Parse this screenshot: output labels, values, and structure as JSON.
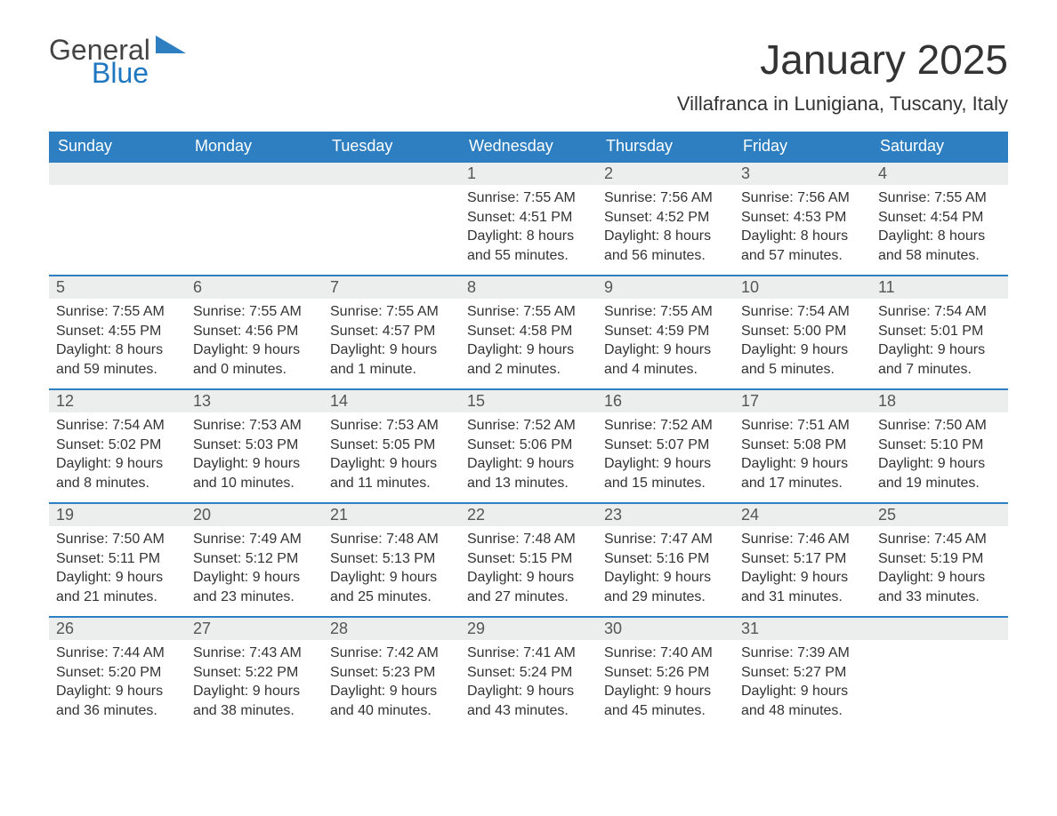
{
  "logo": {
    "word1": "General",
    "word2": "Blue",
    "triangle_color": "#2d7fc1"
  },
  "title": "January 2025",
  "location": "Villafranca in Lunigiana, Tuscany, Italy",
  "colors": {
    "header_bg": "#2d7fc1",
    "header_text": "#ffffff",
    "daybar_bg": "#eceded",
    "week_border": "#2d7fc1",
    "body_text": "#333333",
    "logo_blue": "#1f77c1",
    "logo_gray": "#444444",
    "background": "#ffffff"
  },
  "columns": [
    "Sunday",
    "Monday",
    "Tuesday",
    "Wednesday",
    "Thursday",
    "Friday",
    "Saturday"
  ],
  "weeks": [
    [
      null,
      null,
      null,
      {
        "n": "1",
        "sr": "Sunrise: 7:55 AM",
        "ss": "Sunset: 4:51 PM",
        "d1": "Daylight: 8 hours",
        "d2": "and 55 minutes."
      },
      {
        "n": "2",
        "sr": "Sunrise: 7:56 AM",
        "ss": "Sunset: 4:52 PM",
        "d1": "Daylight: 8 hours",
        "d2": "and 56 minutes."
      },
      {
        "n": "3",
        "sr": "Sunrise: 7:56 AM",
        "ss": "Sunset: 4:53 PM",
        "d1": "Daylight: 8 hours",
        "d2": "and 57 minutes."
      },
      {
        "n": "4",
        "sr": "Sunrise: 7:55 AM",
        "ss": "Sunset: 4:54 PM",
        "d1": "Daylight: 8 hours",
        "d2": "and 58 minutes."
      }
    ],
    [
      {
        "n": "5",
        "sr": "Sunrise: 7:55 AM",
        "ss": "Sunset: 4:55 PM",
        "d1": "Daylight: 8 hours",
        "d2": "and 59 minutes."
      },
      {
        "n": "6",
        "sr": "Sunrise: 7:55 AM",
        "ss": "Sunset: 4:56 PM",
        "d1": "Daylight: 9 hours",
        "d2": "and 0 minutes."
      },
      {
        "n": "7",
        "sr": "Sunrise: 7:55 AM",
        "ss": "Sunset: 4:57 PM",
        "d1": "Daylight: 9 hours",
        "d2": "and 1 minute."
      },
      {
        "n": "8",
        "sr": "Sunrise: 7:55 AM",
        "ss": "Sunset: 4:58 PM",
        "d1": "Daylight: 9 hours",
        "d2": "and 2 minutes."
      },
      {
        "n": "9",
        "sr": "Sunrise: 7:55 AM",
        "ss": "Sunset: 4:59 PM",
        "d1": "Daylight: 9 hours",
        "d2": "and 4 minutes."
      },
      {
        "n": "10",
        "sr": "Sunrise: 7:54 AM",
        "ss": "Sunset: 5:00 PM",
        "d1": "Daylight: 9 hours",
        "d2": "and 5 minutes."
      },
      {
        "n": "11",
        "sr": "Sunrise: 7:54 AM",
        "ss": "Sunset: 5:01 PM",
        "d1": "Daylight: 9 hours",
        "d2": "and 7 minutes."
      }
    ],
    [
      {
        "n": "12",
        "sr": "Sunrise: 7:54 AM",
        "ss": "Sunset: 5:02 PM",
        "d1": "Daylight: 9 hours",
        "d2": "and 8 minutes."
      },
      {
        "n": "13",
        "sr": "Sunrise: 7:53 AM",
        "ss": "Sunset: 5:03 PM",
        "d1": "Daylight: 9 hours",
        "d2": "and 10 minutes."
      },
      {
        "n": "14",
        "sr": "Sunrise: 7:53 AM",
        "ss": "Sunset: 5:05 PM",
        "d1": "Daylight: 9 hours",
        "d2": "and 11 minutes."
      },
      {
        "n": "15",
        "sr": "Sunrise: 7:52 AM",
        "ss": "Sunset: 5:06 PM",
        "d1": "Daylight: 9 hours",
        "d2": "and 13 minutes."
      },
      {
        "n": "16",
        "sr": "Sunrise: 7:52 AM",
        "ss": "Sunset: 5:07 PM",
        "d1": "Daylight: 9 hours",
        "d2": "and 15 minutes."
      },
      {
        "n": "17",
        "sr": "Sunrise: 7:51 AM",
        "ss": "Sunset: 5:08 PM",
        "d1": "Daylight: 9 hours",
        "d2": "and 17 minutes."
      },
      {
        "n": "18",
        "sr": "Sunrise: 7:50 AM",
        "ss": "Sunset: 5:10 PM",
        "d1": "Daylight: 9 hours",
        "d2": "and 19 minutes."
      }
    ],
    [
      {
        "n": "19",
        "sr": "Sunrise: 7:50 AM",
        "ss": "Sunset: 5:11 PM",
        "d1": "Daylight: 9 hours",
        "d2": "and 21 minutes."
      },
      {
        "n": "20",
        "sr": "Sunrise: 7:49 AM",
        "ss": "Sunset: 5:12 PM",
        "d1": "Daylight: 9 hours",
        "d2": "and 23 minutes."
      },
      {
        "n": "21",
        "sr": "Sunrise: 7:48 AM",
        "ss": "Sunset: 5:13 PM",
        "d1": "Daylight: 9 hours",
        "d2": "and 25 minutes."
      },
      {
        "n": "22",
        "sr": "Sunrise: 7:48 AM",
        "ss": "Sunset: 5:15 PM",
        "d1": "Daylight: 9 hours",
        "d2": "and 27 minutes."
      },
      {
        "n": "23",
        "sr": "Sunrise: 7:47 AM",
        "ss": "Sunset: 5:16 PM",
        "d1": "Daylight: 9 hours",
        "d2": "and 29 minutes."
      },
      {
        "n": "24",
        "sr": "Sunrise: 7:46 AM",
        "ss": "Sunset: 5:17 PM",
        "d1": "Daylight: 9 hours",
        "d2": "and 31 minutes."
      },
      {
        "n": "25",
        "sr": "Sunrise: 7:45 AM",
        "ss": "Sunset: 5:19 PM",
        "d1": "Daylight: 9 hours",
        "d2": "and 33 minutes."
      }
    ],
    [
      {
        "n": "26",
        "sr": "Sunrise: 7:44 AM",
        "ss": "Sunset: 5:20 PM",
        "d1": "Daylight: 9 hours",
        "d2": "and 36 minutes."
      },
      {
        "n": "27",
        "sr": "Sunrise: 7:43 AM",
        "ss": "Sunset: 5:22 PM",
        "d1": "Daylight: 9 hours",
        "d2": "and 38 minutes."
      },
      {
        "n": "28",
        "sr": "Sunrise: 7:42 AM",
        "ss": "Sunset: 5:23 PM",
        "d1": "Daylight: 9 hours",
        "d2": "and 40 minutes."
      },
      {
        "n": "29",
        "sr": "Sunrise: 7:41 AM",
        "ss": "Sunset: 5:24 PM",
        "d1": "Daylight: 9 hours",
        "d2": "and 43 minutes."
      },
      {
        "n": "30",
        "sr": "Sunrise: 7:40 AM",
        "ss": "Sunset: 5:26 PM",
        "d1": "Daylight: 9 hours",
        "d2": "and 45 minutes."
      },
      {
        "n": "31",
        "sr": "Sunrise: 7:39 AM",
        "ss": "Sunset: 5:27 PM",
        "d1": "Daylight: 9 hours",
        "d2": "and 48 minutes."
      },
      null
    ]
  ]
}
